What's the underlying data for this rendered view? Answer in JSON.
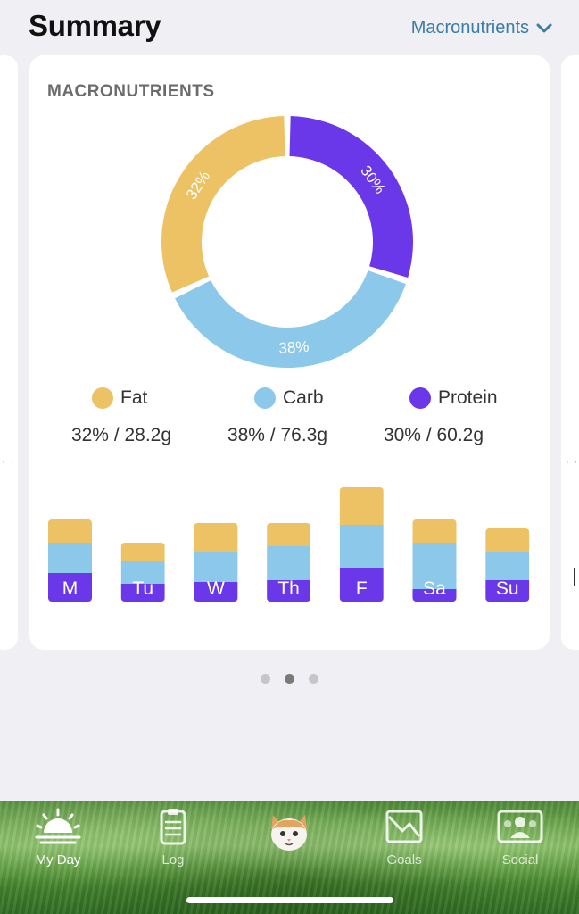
{
  "header": {
    "title": "Summary",
    "selector_label": "Macronutrients"
  },
  "card": {
    "title": "MACRONUTRIENTS",
    "legend": [
      {
        "name": "Fat",
        "value": "32% / 28.2g",
        "color": "#ecc264"
      },
      {
        "name": "Carb",
        "value": "38% / 76.3g",
        "color": "#8cc8ea"
      },
      {
        "name": "Protein",
        "value": "30% / 60.2g",
        "color": "#6a38e8"
      }
    ]
  },
  "chart_data": [
    {
      "type": "pie",
      "categories": [
        "Fat",
        "Carb",
        "Protein"
      ],
      "values": [
        32,
        38,
        30
      ],
      "labels": [
        "32%",
        "38%",
        "30%"
      ],
      "colors": [
        "#ecc264",
        "#8cc8ea",
        "#6a38e8"
      ],
      "donut": true
    },
    {
      "type": "bar",
      "stacked": true,
      "categories": [
        "M",
        "Tu",
        "W",
        "Th",
        "F",
        "Sa",
        "Su"
      ],
      "series": [
        {
          "name": "Protein",
          "color": "#6a38e8",
          "values": [
            32,
            20,
            22,
            24,
            38,
            14,
            24
          ]
        },
        {
          "name": "Carb",
          "color": "#8cc8ea",
          "values": [
            34,
            26,
            34,
            38,
            48,
            52,
            32
          ]
        },
        {
          "name": "Fat",
          "color": "#ecc264",
          "values": [
            26,
            20,
            32,
            26,
            42,
            26,
            26
          ]
        }
      ]
    }
  ],
  "pager": {
    "count": 3,
    "active": 1
  },
  "tabs": [
    {
      "label": "My Day",
      "icon": "sunrise-icon",
      "active": true
    },
    {
      "label": "Log",
      "icon": "clipboard-icon",
      "active": false
    },
    {
      "label": "",
      "icon": "cat-avatar-icon",
      "active": false
    },
    {
      "label": "Goals",
      "icon": "chart-goals-icon",
      "active": false
    },
    {
      "label": "Social",
      "icon": "social-people-icon",
      "active": false
    }
  ]
}
